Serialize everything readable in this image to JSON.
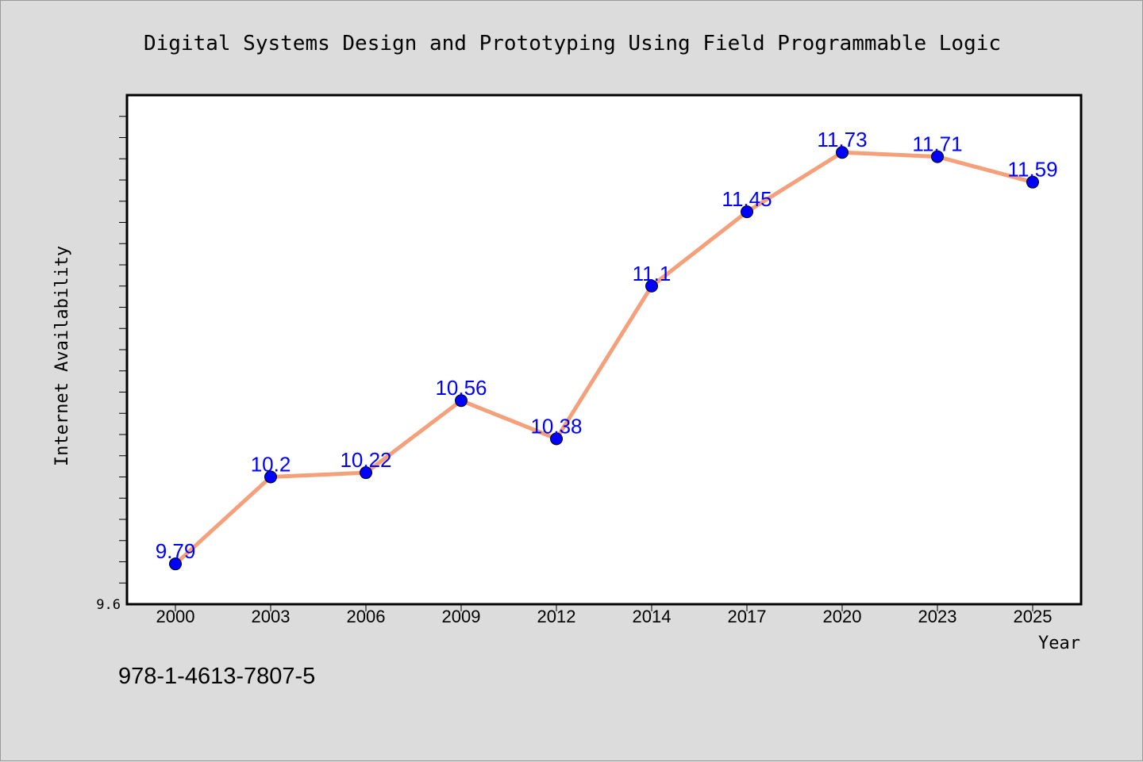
{
  "isbn": "978-1-4613-7807-5",
  "chart_data": {
    "type": "line",
    "title": "Digital Systems Design and Prototyping Using Field Programmable Logic",
    "xlabel": "Year",
    "ylabel": "Internet Availability",
    "categories": [
      "2000",
      "2003",
      "2006",
      "2009",
      "2012",
      "2014",
      "2017",
      "2020",
      "2023",
      "2025"
    ],
    "series": [
      {
        "values": [
          9.79,
          10.2,
          10.22,
          10.56,
          10.38,
          11.1,
          11.45,
          11.73,
          11.71,
          11.59
        ],
        "line_color": "#f4a07a",
        "marker_color": "#0000ff"
      }
    ],
    "data_labels": [
      "9.79",
      "10.2",
      "10.22",
      "10.56",
      "10.38",
      "11.1",
      "11.45",
      "11.73",
      "11.71",
      "11.59"
    ],
    "y_tick_labels": [
      "9.6"
    ],
    "ylim": [
      9.6,
      12.0
    ],
    "y_minor_tick_step": 0.1,
    "grid": false,
    "legend": "none",
    "colors": {
      "background": "#dcdcdc",
      "plot_background": "#ffffff",
      "label": "#0000ff"
    }
  }
}
